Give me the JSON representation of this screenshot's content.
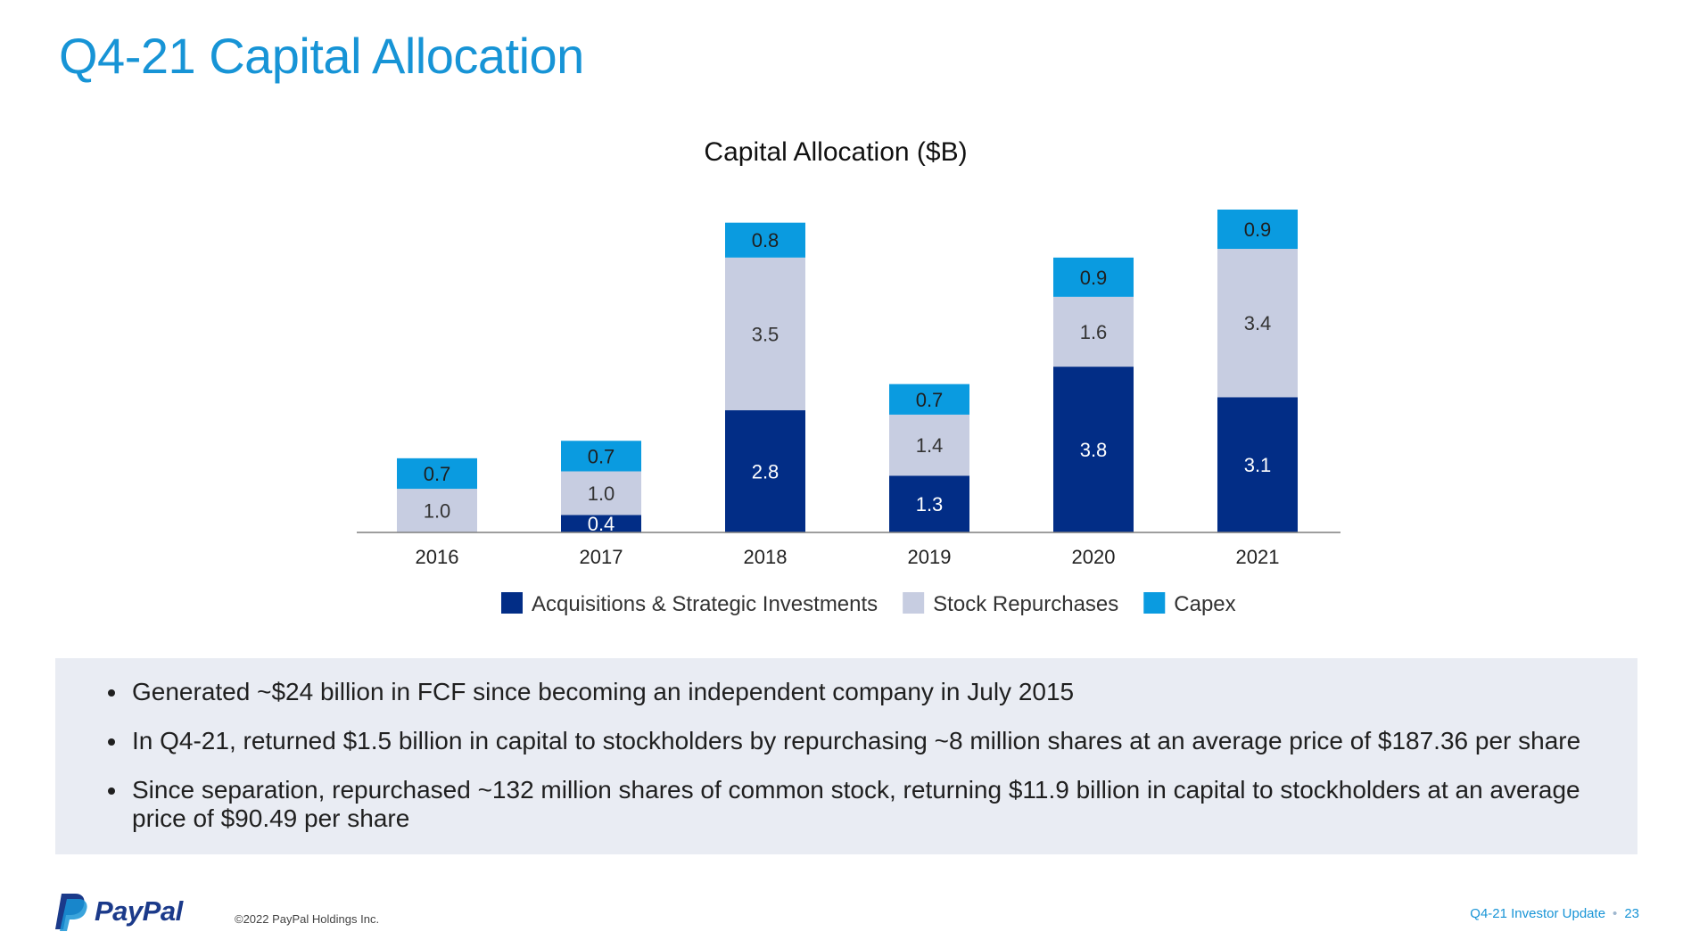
{
  "page": {
    "title": "Q4-21 Capital Allocation"
  },
  "chart_data": {
    "type": "bar",
    "stacked": true,
    "title": "Capital Allocation ($B)",
    "xlabel": "",
    "ylabel": "",
    "categories": [
      "2016",
      "2017",
      "2018",
      "2019",
      "2020",
      "2021"
    ],
    "series": [
      {
        "name": "Acquisitions & Strategic Investments",
        "color": "#022d86",
        "values": [
          null,
          0.4,
          2.8,
          1.3,
          3.8,
          3.1
        ]
      },
      {
        "name": "Stock Repurchases",
        "color": "#c7cde1",
        "values": [
          1.0,
          1.0,
          3.5,
          1.4,
          1.6,
          3.4
        ]
      },
      {
        "name": "Capex",
        "color": "#0a9be0",
        "values": [
          0.7,
          0.7,
          0.8,
          0.7,
          0.9,
          0.9
        ]
      }
    ],
    "label_colors": {
      "Acquisitions & Strategic Investments": "#ffffff",
      "Stock Repurchases": "#333333",
      "Capex": "#1f1f1f"
    },
    "ylim": [
      0,
      7.4
    ],
    "grid": false,
    "legend": "bottom"
  },
  "summary": {
    "bullets": [
      "Generated ~$24 billion in FCF since becoming an independent company in July 2015",
      "In Q4-21, returned $1.5 billion in capital to stockholders by repurchasing ~8 million shares at an average price of $187.36 per share",
      "Since separation, repurchased ~132 million shares of common stock, returning $11.9 billion in capital to stockholders at an average price of $90.49 per share"
    ]
  },
  "footer": {
    "logo_text": "PayPal",
    "copyright": "©2022 PayPal Holdings Inc.",
    "doc_title": "Q4-21 Investor Update",
    "separator": "•",
    "page_number": "23"
  },
  "icons": {
    "logo": "paypal-logo-icon"
  },
  "colors": {
    "accent": "#1794d6",
    "brand_navy": "#1b3a8a"
  }
}
